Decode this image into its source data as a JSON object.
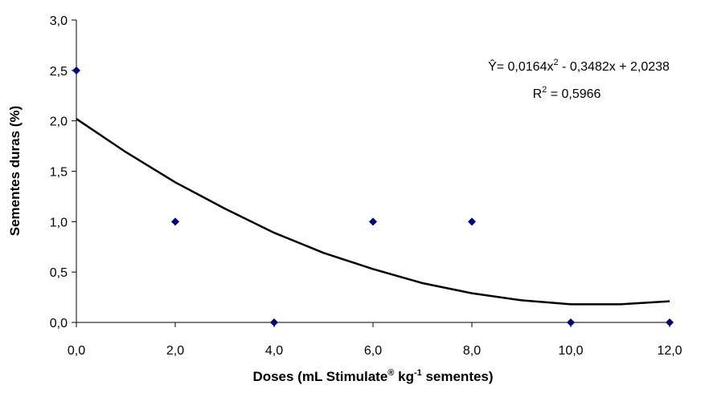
{
  "chart_data": {
    "type": "scatter",
    "y_label": "Sementes duras (%)",
    "x_label_parts": [
      "Doses (mL Stimulate",
      "®",
      " kg",
      "-1",
      " sementes)"
    ],
    "equation_parts": [
      "Ŷ= 0,0164x",
      "2",
      " - 0,3482x + 2,0238"
    ],
    "r2_parts": [
      "R",
      "2",
      " = 0,5966"
    ],
    "xlim": [
      0,
      12
    ],
    "xticks": [
      {
        "value": 0,
        "label": "0,0"
      },
      {
        "value": 2,
        "label": "2,0"
      },
      {
        "value": 4,
        "label": "4,0"
      },
      {
        "value": 6,
        "label": "6,0"
      },
      {
        "value": 8,
        "label": "8,0"
      },
      {
        "value": 10,
        "label": "10,0"
      },
      {
        "value": 12,
        "label": "12,0"
      }
    ],
    "ylim": [
      0,
      3
    ],
    "yticks": [
      {
        "value": 0,
        "label": "0,0"
      },
      {
        "value": 0.5,
        "label": "0,5"
      },
      {
        "value": 1,
        "label": "1,0"
      },
      {
        "value": 1.5,
        "label": "1,5"
      },
      {
        "value": 2,
        "label": "2,0"
      },
      {
        "value": 2.5,
        "label": "2,5"
      },
      {
        "value": 3,
        "label": "3,0"
      }
    ],
    "grid": false,
    "series": [
      {
        "color": "#000080",
        "x": [
          0,
          2,
          4,
          6,
          8,
          10,
          12
        ],
        "values": [
          2.5,
          1,
          0,
          1,
          1,
          0,
          0
        ]
      }
    ],
    "trendline": {
      "color": "#000000",
      "x": [
        0,
        1,
        2,
        3,
        4,
        5,
        6,
        7,
        8,
        9,
        10,
        11,
        12
      ],
      "values": [
        2.02,
        1.69,
        1.39,
        1.13,
        0.89,
        0.69,
        0.53,
        0.39,
        0.29,
        0.22,
        0.18,
        0.18,
        0.21
      ]
    }
  }
}
